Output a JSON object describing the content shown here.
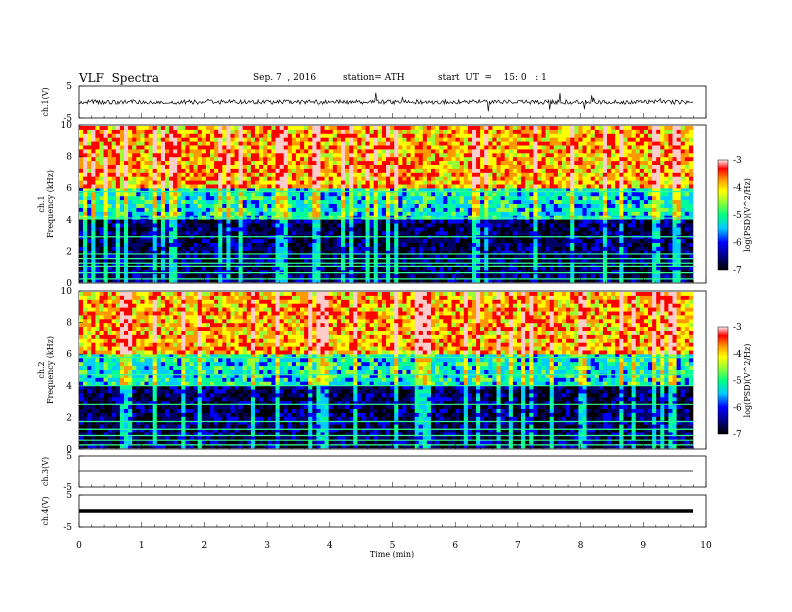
{
  "header": {
    "title": "VLF  Spectra",
    "date": "Sep. 7  , 2016",
    "station": "station= ATH",
    "start": "start  UT  =    15: 0   : 1"
  },
  "chart_data": [
    {
      "type": "line",
      "panel": "ch1-waveform",
      "ylabel": "ch.1(V)",
      "ylim": [
        -5,
        5
      ],
      "y_ticks": [
        "5",
        "-5"
      ],
      "series": [
        {
          "values_description": "noisy waveform centered near 0 V, amplitude roughly ±1 V with spikes to about ±3 V"
        }
      ]
    },
    {
      "type": "heatmap",
      "panel": "ch1-spectrogram",
      "ylabel": "ch.1\nFrequency  (kHz)",
      "ylim": [
        0,
        10
      ],
      "y_ticks": [
        "0",
        "2",
        "4",
        "6",
        "8",
        "10"
      ],
      "xlim": [
        0,
        10
      ],
      "colorbar": {
        "label": "log(PSD)(V^2/Hz)",
        "range": [
          -7,
          -3
        ],
        "ticks": [
          "-3",
          "-4",
          "-5",
          "-6",
          "-7"
        ]
      }
    },
    {
      "type": "heatmap",
      "panel": "ch2-spectrogram",
      "ylabel": "ch.2\nFrequency  (kHz)",
      "ylim": [
        0,
        10
      ],
      "y_ticks": [
        "0",
        "2",
        "4",
        "6",
        "8",
        "10"
      ],
      "xlim": [
        0,
        10
      ],
      "colorbar": {
        "label": "log(PSD)(V^2/Hz)",
        "range": [
          -7,
          -3
        ],
        "ticks": [
          "-3",
          "-4",
          "-5",
          "-6",
          "-7"
        ]
      }
    },
    {
      "type": "line",
      "panel": "ch3-waveform",
      "ylabel": "ch.3(V)",
      "ylim": [
        -5,
        5
      ],
      "y_ticks": [
        "5",
        "-5"
      ],
      "series": [
        {
          "values_description": "flat near 0 V"
        }
      ]
    },
    {
      "type": "line",
      "panel": "ch4-waveform",
      "ylabel": "ch.4(V)",
      "ylim": [
        -5,
        5
      ],
      "y_ticks": [
        "5",
        "-5"
      ],
      "series": [
        {
          "values_description": "thick flat line near 0 V"
        }
      ]
    }
  ],
  "x_axis": {
    "label": "Time  (min)",
    "range": [
      0,
      10
    ],
    "ticks": [
      "0",
      "1",
      "2",
      "3",
      "4",
      "5",
      "6",
      "7",
      "8",
      "9",
      "10"
    ]
  },
  "colors": {
    "colormap": [
      "#000000",
      "#000066",
      "#0000ff",
      "#00ccff",
      "#00ff99",
      "#99ff33",
      "#ffff00",
      "#ff9900",
      "#ff0000",
      "#ffcccc"
    ],
    "waveform": "#000000"
  }
}
